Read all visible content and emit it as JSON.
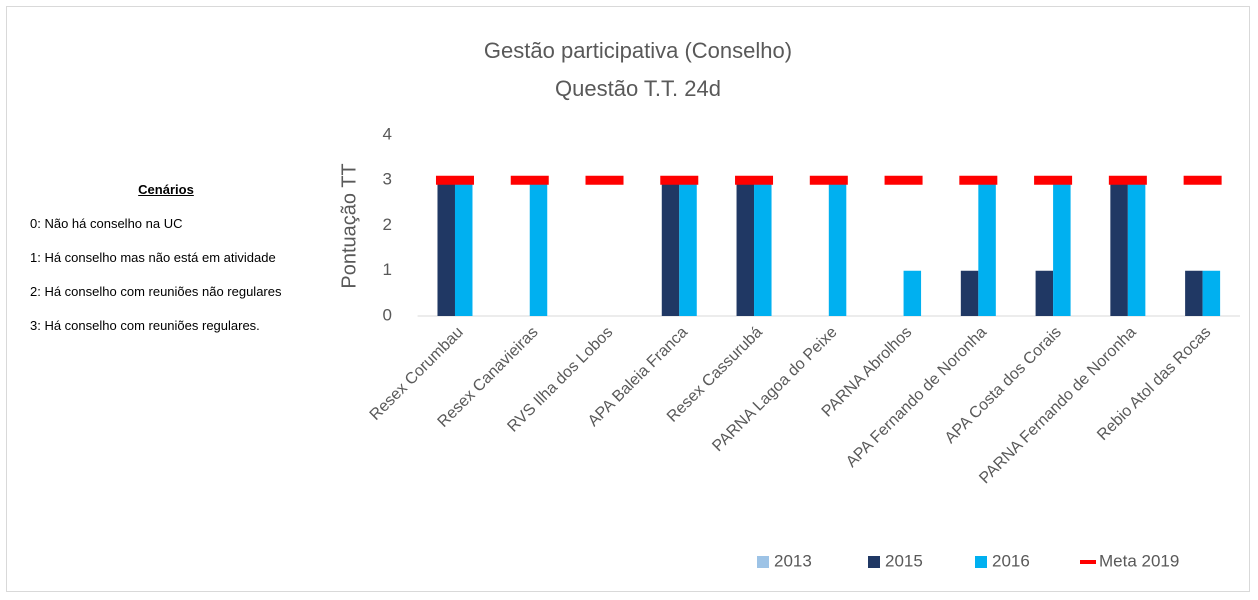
{
  "sidebar": {
    "title": "Cenários",
    "items": [
      "0: Não há conselho na UC",
      "1: Há conselho mas não está em atividade",
      "2: Há conselho com reuniões não regulares",
      "3: Há conselho com reuniões regulares."
    ]
  },
  "chart_data": {
    "type": "bar",
    "title": "Gestão participativa (Conselho)",
    "subtitle": "Questão T.T. 24d",
    "y_label": "Pontuação TT",
    "categories": [
      "Resex Corumbau",
      "Resex Canavieiras",
      "RVS Ilha dos Lobos",
      "APA Baleia Franca",
      "Resex Cassurubá",
      "PARNA Lagoa do Peixe",
      "PARNA Abrolhos",
      "APA Fernando de Noronha",
      "APA Costa dos Corais",
      "PARNA Fernando de Noronha",
      "Rebio Atol das Rocas"
    ],
    "series": [
      {
        "name": "2013",
        "type": "bar",
        "color": "#9dc3e6",
        "values": [
          0,
          0,
          0,
          0,
          0,
          0,
          0,
          0,
          0,
          0,
          0
        ]
      },
      {
        "name": "2015",
        "type": "bar",
        "color": "#203864",
        "values": [
          3,
          0,
          0,
          3,
          3,
          0,
          0,
          1,
          1,
          3,
          1
        ]
      },
      {
        "name": "2016",
        "type": "bar",
        "color": "#00b0f0",
        "values": [
          3,
          3,
          0,
          3,
          3,
          3,
          1,
          3,
          3,
          3,
          1
        ]
      },
      {
        "name": "Meta 2019",
        "type": "line",
        "color": "#ff0000",
        "values": [
          3,
          3,
          3,
          3,
          3,
          3,
          3,
          3,
          3,
          3,
          3
        ]
      }
    ],
    "ylim": [
      0,
      4
    ],
    "yticks": [
      0,
      1,
      2,
      3,
      4
    ],
    "grid": false,
    "legend": "bottom"
  }
}
